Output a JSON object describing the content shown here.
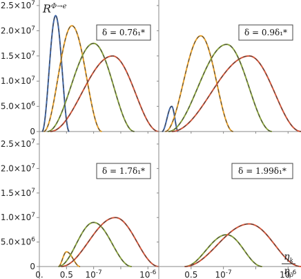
{
  "chart_data": {
    "type": "line",
    "ylabel": "R^{Φ→e}",
    "xlabel_num": "η_k",
    "xlabel_den": "η_ρ",
    "ylim": [
      0,
      25000000
    ],
    "xlim": [
      0,
      2.2
    ],
    "y_ticks": [
      {
        "value": 0,
        "label": "0"
      },
      {
        "value": 5000000,
        "label": "5.0×10^6"
      },
      {
        "value": 10000000,
        "label": "1.0×10^7"
      },
      {
        "value": 15000000,
        "label": "1.5×10^7"
      },
      {
        "value": 20000000,
        "label": "2.0×10^7"
      },
      {
        "value": 25000000,
        "label": "2.5×10^7"
      }
    ],
    "x_ticks": [
      {
        "value": 0,
        "label": "0."
      },
      {
        "value": 0.5,
        "label": "0.5"
      },
      {
        "value": 1.0,
        "label": "10^-7"
      },
      {
        "value": 1.5,
        "label": ""
      },
      {
        "value": 2.0,
        "label": "10^-6"
      }
    ],
    "series_colors": {
      "blue": "#3f66a8",
      "orange": "#e8a02a",
      "green": "#8aa33c",
      "red": "#d6573a",
      "dash": "#444444"
    },
    "panels": [
      {
        "legend": "δ = 0.7δ₁*",
        "series": [
          {
            "color": "blue",
            "peak_x": 0.3,
            "peak_y": 23000000,
            "start": 0.05,
            "end": 0.55
          },
          {
            "color": "orange",
            "peak_x": 0.6,
            "peak_y": 21000000,
            "start": 0.08,
            "end": 1.15
          },
          {
            "color": "green",
            "peak_x": 1.0,
            "peak_y": 17500000,
            "start": 0.15,
            "end": 1.75
          },
          {
            "color": "red",
            "peak_x": 1.35,
            "peak_y": 15000000,
            "start": 0.2,
            "end": 2.2
          }
        ]
      },
      {
        "legend": "δ = 0.9δ₁*",
        "series": [
          {
            "color": "blue",
            "peak_x": 0.2,
            "peak_y": 5000000,
            "start": 0.05,
            "end": 0.3
          },
          {
            "color": "orange",
            "peak_x": 0.65,
            "peak_y": 19000000,
            "start": 0.1,
            "end": 1.15
          },
          {
            "color": "green",
            "peak_x": 1.05,
            "peak_y": 17300000,
            "start": 0.15,
            "end": 1.75
          },
          {
            "color": "red",
            "peak_x": 1.4,
            "peak_y": 15000000,
            "start": 0.2,
            "end": 2.2
          }
        ]
      },
      {
        "legend": "δ = 1.7δ₁*",
        "series": [
          {
            "color": "orange",
            "peak_x": 0.5,
            "peak_y": 3000000,
            "start": 0.35,
            "end": 0.75
          },
          {
            "color": "green",
            "peak_x": 1.0,
            "peak_y": 9000000,
            "start": 0.35,
            "end": 1.7
          },
          {
            "color": "red",
            "peak_x": 1.4,
            "peak_y": 10000000,
            "start": 0.4,
            "end": 2.2
          }
        ]
      },
      {
        "legend": "δ = 1.99δ₁*",
        "series": [
          {
            "color": "green",
            "peak_x": 1.05,
            "peak_y": 6500000,
            "start": 0.4,
            "end": 1.6
          },
          {
            "color": "red",
            "peak_x": 1.4,
            "peak_y": 8700000,
            "start": 0.4,
            "end": 2.2
          }
        ]
      }
    ]
  }
}
